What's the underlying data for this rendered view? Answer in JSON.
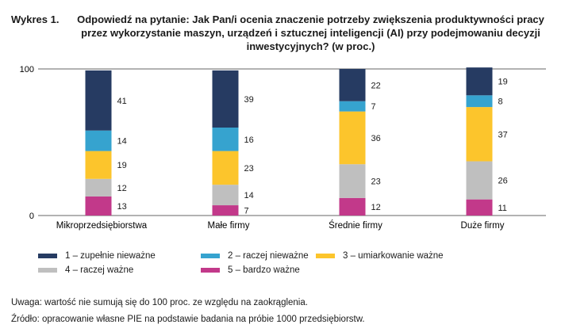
{
  "figure": {
    "number": "Wykres 1.",
    "title": "Odpowiedź na pytanie: Jak Pan/i ocenia znaczenie potrzeby zwiększenia produktywności pracy przez wykorzystanie maszyn, urządzeń i sztucznej inteligencji (AI) przy podejmowaniu decyzji inwestycyjnych? (w proc.)"
  },
  "chart_data": {
    "type": "bar",
    "stacked": true,
    "categories": [
      "Mikroprzedsiębiorstwa",
      "Małe firmy",
      "Średnie firmy",
      "Duże firmy"
    ],
    "series": [
      {
        "name": "5 – bardzo ważne",
        "color": "#c2398a",
        "values": [
          13,
          7,
          12,
          11
        ]
      },
      {
        "name": "4 – raczej ważne",
        "color": "#bfbfbf",
        "values": [
          12,
          14,
          23,
          26
        ]
      },
      {
        "name": "3 – umiarkowanie ważne",
        "color": "#fcc52c",
        "values": [
          19,
          23,
          36,
          37
        ]
      },
      {
        "name": "2 – raczej nieważne",
        "color": "#36a3cf",
        "values": [
          14,
          16,
          7,
          8
        ]
      },
      {
        "name": "1 – zupełnie nieważne",
        "color": "#263b62",
        "values": [
          41,
          39,
          22,
          19
        ]
      }
    ],
    "ylim": [
      0,
      100
    ],
    "yticks": [
      "0",
      "100"
    ],
    "grid": false,
    "legend_position": "bottom"
  },
  "legend_order": [
    4,
    3,
    2,
    1,
    0
  ],
  "notes": {
    "uwaga": "Uwaga: wartość nie sumują się do 100 proc. ze względu na zaokrąglenia.",
    "zrodlo": "Źródło: opracowanie własne PIE na podstawie badania na próbie 1000 przedsiębiorstw."
  }
}
